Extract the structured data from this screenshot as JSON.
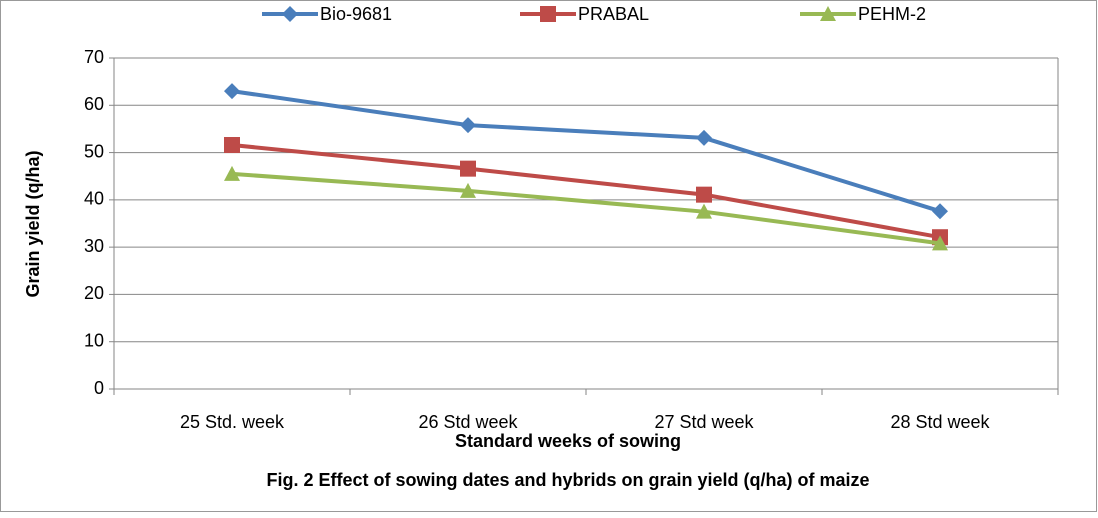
{
  "chart_data": {
    "type": "line",
    "caption": "Fig. 2 Effect of sowing dates and hybrids on grain yield (q/ha) of maize",
    "x_label": "Standard weeks of sowing",
    "y_label": "Grain yield (q/ha)",
    "categories": [
      "25 Std. week",
      "26 Std week",
      "27 Std week",
      "28 Std week"
    ],
    "series": [
      {
        "name": "Bio-9681",
        "color": "#4a7ebb",
        "marker": "diamond",
        "values": [
          63,
          55.8,
          53.1,
          37.6
        ]
      },
      {
        "name": "PRABAL",
        "color": "#be4b48",
        "marker": "square",
        "values": [
          51.6,
          46.6,
          41.1,
          32.1
        ]
      },
      {
        "name": "PEHM-2",
        "color": "#98b954",
        "marker": "triangle",
        "values": [
          45.5,
          41.9,
          37.5,
          30.8
        ]
      }
    ],
    "ylim": [
      0,
      70
    ],
    "yticks": [
      0,
      10,
      20,
      30,
      40,
      50,
      60,
      70
    ],
    "grid": true,
    "legend": "top"
  }
}
